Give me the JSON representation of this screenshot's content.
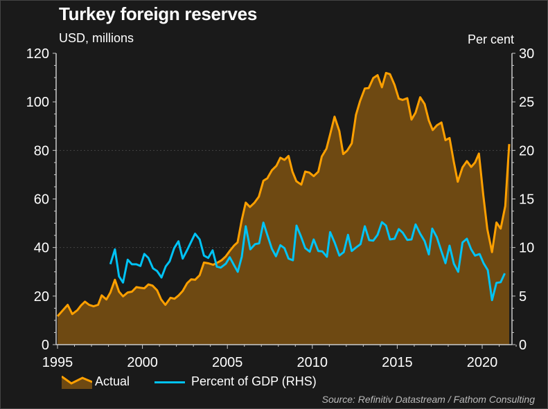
{
  "chart_data": {
    "type": "area",
    "title": "Turkey foreign reserves",
    "ylabel_left": "USD, millions",
    "ylabel_right": "Per cent",
    "xlim": [
      1995,
      2022
    ],
    "ylim_left": [
      0,
      120
    ],
    "ylim_right": [
      0,
      30
    ],
    "x_ticks": [
      "1995",
      "2000",
      "2005",
      "2010",
      "2015",
      "2020"
    ],
    "y_ticks_left": [
      "0",
      "20",
      "40",
      "60",
      "80",
      "100",
      "120"
    ],
    "y_ticks_right": [
      "0",
      "5",
      "10",
      "15",
      "20",
      "25",
      "30"
    ],
    "grid": "horizontal dotted at 40 and 80",
    "legend_placement": "bottom",
    "source": "Source: Refinitiv Datastream / Fathom Consulting",
    "colors": {
      "actual_line": "#ffa000",
      "actual_fill": "#6e4912",
      "gdp_line": "#00c3f5",
      "background": "#1a1a1a"
    },
    "series": [
      {
        "name": "Actual",
        "axis": "left",
        "kind": "area",
        "points": [
          [
            1995.0,
            11.7
          ],
          [
            1995.6,
            16.4
          ],
          [
            1995.87,
            12.6
          ],
          [
            1996.17,
            14.2
          ],
          [
            1996.39,
            16.2
          ],
          [
            1996.62,
            17.7
          ],
          [
            1996.86,
            16.4
          ],
          [
            1997.12,
            15.8
          ],
          [
            1997.39,
            16.4
          ],
          [
            1997.6,
            20.3
          ],
          [
            1997.88,
            18.6
          ],
          [
            1998.11,
            21.5
          ],
          [
            1998.38,
            26.7
          ],
          [
            1998.62,
            21.8
          ],
          [
            1998.86,
            19.9
          ],
          [
            1999.13,
            21.5
          ],
          [
            1999.38,
            21.8
          ],
          [
            1999.64,
            23.7
          ],
          [
            1999.88,
            23.4
          ],
          [
            2000.11,
            23.2
          ],
          [
            2000.35,
            24.8
          ],
          [
            2000.59,
            24.3
          ],
          [
            2000.86,
            22.4
          ],
          [
            2001.1,
            18.6
          ],
          [
            2001.35,
            16.4
          ],
          [
            2001.65,
            19.3
          ],
          [
            2001.89,
            18.9
          ],
          [
            2002.12,
            20.2
          ],
          [
            2002.37,
            22.1
          ],
          [
            2002.63,
            25.3
          ],
          [
            2002.87,
            26.9
          ],
          [
            2003.1,
            26.7
          ],
          [
            2003.37,
            28.6
          ],
          [
            2003.62,
            33.8
          ],
          [
            2003.89,
            33.5
          ],
          [
            2004.16,
            32.9
          ],
          [
            2004.42,
            33.8
          ],
          [
            2004.67,
            34.8
          ],
          [
            2004.91,
            36.4
          ],
          [
            2005.14,
            38.6
          ],
          [
            2005.39,
            40.8
          ],
          [
            2005.6,
            42.1
          ],
          [
            2005.85,
            51.4
          ],
          [
            2006.08,
            58.5
          ],
          [
            2006.33,
            56.7
          ],
          [
            2006.6,
            58.5
          ],
          [
            2006.85,
            60.9
          ],
          [
            2007.12,
            67.5
          ],
          [
            2007.35,
            68.5
          ],
          [
            2007.62,
            71.8
          ],
          [
            2007.89,
            73.7
          ],
          [
            2008.12,
            77.0
          ],
          [
            2008.36,
            76.1
          ],
          [
            2008.6,
            77.7
          ],
          [
            2008.83,
            71.3
          ],
          [
            2009.06,
            67.3
          ],
          [
            2009.35,
            65.9
          ],
          [
            2009.58,
            71.3
          ],
          [
            2009.82,
            70.9
          ],
          [
            2010.08,
            69.4
          ],
          [
            2010.35,
            71.2
          ],
          [
            2010.56,
            77.5
          ],
          [
            2010.83,
            80.7
          ],
          [
            2011.05,
            86.6
          ],
          [
            2011.31,
            93.9
          ],
          [
            2011.59,
            88.0
          ],
          [
            2011.82,
            78.5
          ],
          [
            2012.05,
            79.9
          ],
          [
            2012.32,
            82.9
          ],
          [
            2012.57,
            94.6
          ],
          [
            2012.81,
            100.3
          ],
          [
            2013.09,
            105.5
          ],
          [
            2013.32,
            105.7
          ],
          [
            2013.59,
            109.8
          ],
          [
            2013.84,
            111.0
          ],
          [
            2014.1,
            106.0
          ],
          [
            2014.34,
            111.9
          ],
          [
            2014.57,
            111.4
          ],
          [
            2014.84,
            107.0
          ],
          [
            2015.09,
            101.3
          ],
          [
            2015.32,
            100.8
          ],
          [
            2015.59,
            101.5
          ],
          [
            2015.84,
            92.7
          ],
          [
            2016.08,
            95.6
          ],
          [
            2016.35,
            101.9
          ],
          [
            2016.61,
            99.1
          ],
          [
            2016.86,
            92.3
          ],
          [
            2017.09,
            88.4
          ],
          [
            2017.33,
            90.3
          ],
          [
            2017.6,
            91.5
          ],
          [
            2017.84,
            84.2
          ],
          [
            2018.08,
            85.1
          ],
          [
            2018.33,
            75.2
          ],
          [
            2018.56,
            67.1
          ],
          [
            2018.84,
            73.0
          ],
          [
            2019.1,
            75.6
          ],
          [
            2019.35,
            73.2
          ],
          [
            2019.58,
            75.0
          ],
          [
            2019.81,
            78.7
          ],
          [
            2020.06,
            61.8
          ],
          [
            2020.3,
            47.6
          ],
          [
            2020.58,
            38.1
          ],
          [
            2020.84,
            50.3
          ],
          [
            2021.09,
            47.8
          ],
          [
            2021.36,
            57.1
          ],
          [
            2021.59,
            82.6
          ]
        ]
      },
      {
        "name": "Percent of GDP (RHS)",
        "axis": "right",
        "kind": "line",
        "points": [
          [
            1998.11,
            8.29
          ],
          [
            1998.38,
            9.81
          ],
          [
            1998.62,
            7.03
          ],
          [
            1998.86,
            6.39
          ],
          [
            1999.13,
            8.74
          ],
          [
            1999.38,
            8.27
          ],
          [
            1999.64,
            8.27
          ],
          [
            1999.88,
            8.1
          ],
          [
            2000.11,
            9.34
          ],
          [
            2000.35,
            8.93
          ],
          [
            2000.62,
            7.86
          ],
          [
            2000.86,
            7.58
          ],
          [
            2001.12,
            6.91
          ],
          [
            2001.37,
            8.05
          ],
          [
            2001.6,
            8.57
          ],
          [
            2001.87,
            9.95
          ],
          [
            2002.12,
            10.64
          ],
          [
            2002.37,
            8.86
          ],
          [
            2002.64,
            9.76
          ],
          [
            2002.87,
            10.6
          ],
          [
            2003.1,
            11.42
          ],
          [
            2003.37,
            10.83
          ],
          [
            2003.62,
            9.17
          ],
          [
            2003.87,
            8.93
          ],
          [
            2004.13,
            9.71
          ],
          [
            2004.38,
            8.03
          ],
          [
            2004.61,
            7.93
          ],
          [
            2004.91,
            8.34
          ],
          [
            2005.14,
            9.0
          ],
          [
            2005.38,
            8.22
          ],
          [
            2005.61,
            7.5
          ],
          [
            2005.85,
            9.05
          ],
          [
            2006.08,
            12.19
          ],
          [
            2006.35,
            9.81
          ],
          [
            2006.63,
            10.35
          ],
          [
            2006.87,
            10.43
          ],
          [
            2007.12,
            12.56
          ],
          [
            2007.35,
            11.31
          ],
          [
            2007.62,
            9.88
          ],
          [
            2007.86,
            9.1
          ],
          [
            2008.12,
            10.24
          ],
          [
            2008.36,
            9.93
          ],
          [
            2008.6,
            8.86
          ],
          [
            2008.86,
            8.69
          ],
          [
            2009.07,
            12.26
          ],
          [
            2009.33,
            11.14
          ],
          [
            2009.58,
            9.95
          ],
          [
            2009.85,
            9.57
          ],
          [
            2010.08,
            10.83
          ],
          [
            2010.35,
            9.64
          ],
          [
            2010.59,
            9.6
          ],
          [
            2010.86,
            9.05
          ],
          [
            2011.05,
            11.59
          ],
          [
            2011.32,
            10.48
          ],
          [
            2011.59,
            9.17
          ],
          [
            2011.85,
            9.53
          ],
          [
            2012.1,
            11.31
          ],
          [
            2012.32,
            9.64
          ],
          [
            2012.57,
            10.0
          ],
          [
            2012.84,
            10.35
          ],
          [
            2013.09,
            12.19
          ],
          [
            2013.35,
            10.76
          ],
          [
            2013.59,
            10.71
          ],
          [
            2013.84,
            11.31
          ],
          [
            2014.1,
            12.61
          ],
          [
            2014.34,
            12.26
          ],
          [
            2014.57,
            10.83
          ],
          [
            2014.84,
            10.9
          ],
          [
            2015.09,
            11.9
          ],
          [
            2015.32,
            11.54
          ],
          [
            2015.59,
            10.78
          ],
          [
            2015.84,
            10.83
          ],
          [
            2016.08,
            12.38
          ],
          [
            2016.35,
            11.42
          ],
          [
            2016.61,
            10.67
          ],
          [
            2016.86,
            9.29
          ],
          [
            2017.06,
            11.95
          ],
          [
            2017.33,
            11.07
          ],
          [
            2017.58,
            9.71
          ],
          [
            2017.84,
            8.39
          ],
          [
            2018.08,
            10.19
          ],
          [
            2018.33,
            8.34
          ],
          [
            2018.59,
            7.5
          ],
          [
            2018.84,
            10.52
          ],
          [
            2019.1,
            10.9
          ],
          [
            2019.35,
            9.81
          ],
          [
            2019.58,
            9.17
          ],
          [
            2019.85,
            9.33
          ],
          [
            2020.08,
            8.39
          ],
          [
            2020.33,
            7.67
          ],
          [
            2020.58,
            4.58
          ],
          [
            2020.84,
            6.36
          ],
          [
            2021.09,
            6.43
          ],
          [
            2021.33,
            7.34
          ]
        ]
      }
    ]
  }
}
